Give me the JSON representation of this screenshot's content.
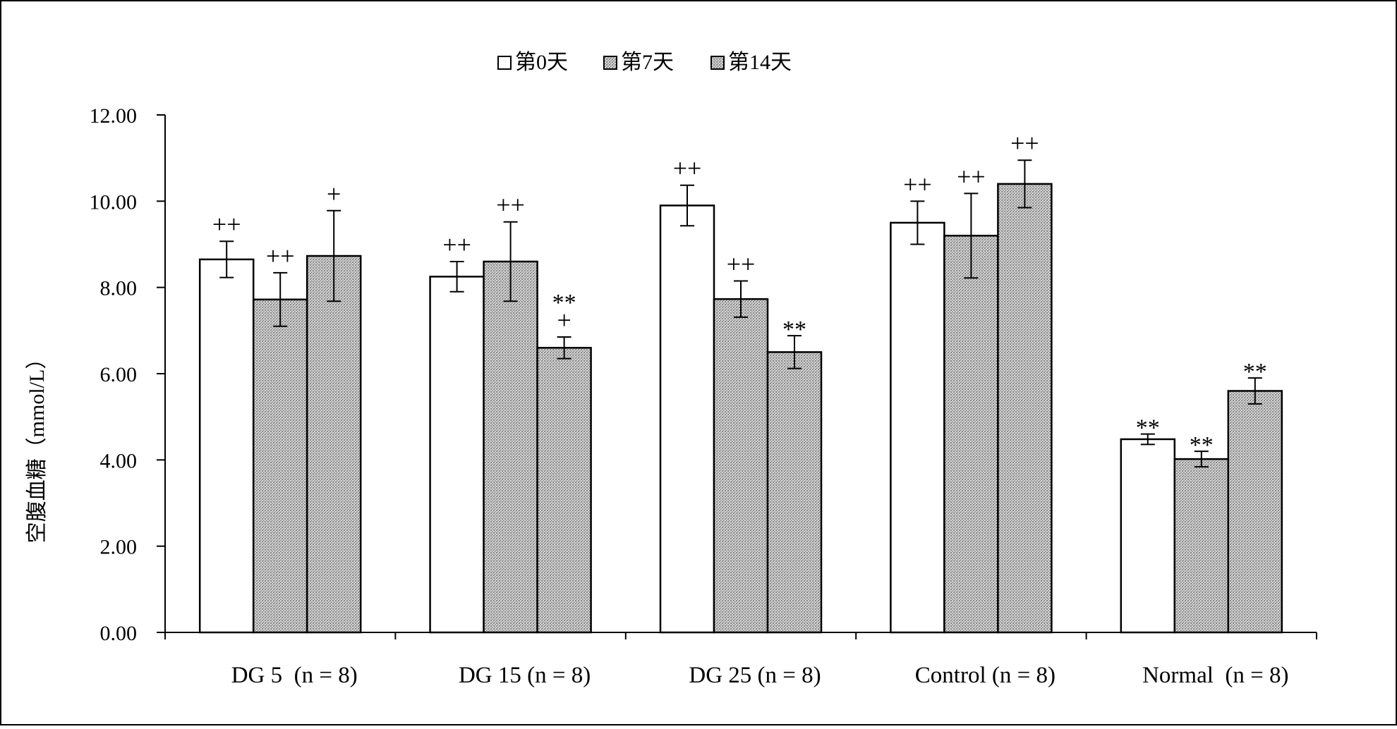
{
  "chart_data": {
    "type": "bar",
    "title": "",
    "xlabel": "",
    "ylabel": "空腹血糖（mmol/L）",
    "ylim": [
      0,
      12
    ],
    "yticks": [
      "0.00",
      "2.00",
      "4.00",
      "6.00",
      "8.00",
      "10.00",
      "12.00"
    ],
    "grid": false,
    "legend_position": "top-center",
    "categories": [
      "DG 5  (n = 8)",
      "DG 15 (n = 8)",
      "DG 25 (n = 8)",
      "Control (n = 8)",
      "Normal  (n = 8)"
    ],
    "series": [
      {
        "name": "第0天",
        "fill": "white",
        "values": [
          8.65,
          8.25,
          9.9,
          9.5,
          4.48
        ],
        "errors": [
          0.42,
          0.35,
          0.47,
          0.5,
          0.12
        ],
        "annotations": [
          "++",
          "++",
          "++",
          "++",
          "**"
        ]
      },
      {
        "name": "第7天",
        "fill": "stipple",
        "values": [
          7.72,
          8.6,
          7.73,
          9.2,
          4.02
        ],
        "errors": [
          0.62,
          0.92,
          0.42,
          0.98,
          0.18
        ],
        "annotations": [
          "++",
          "++",
          "++",
          "++",
          "**"
        ]
      },
      {
        "name": "第14天",
        "fill": "stipple",
        "values": [
          8.73,
          6.6,
          6.5,
          10.4,
          5.6
        ],
        "errors": [
          1.05,
          0.25,
          0.38,
          0.55,
          0.3
        ],
        "annotations": [
          "+",
          "**\n+",
          "**",
          "++",
          "**"
        ]
      }
    ]
  }
}
